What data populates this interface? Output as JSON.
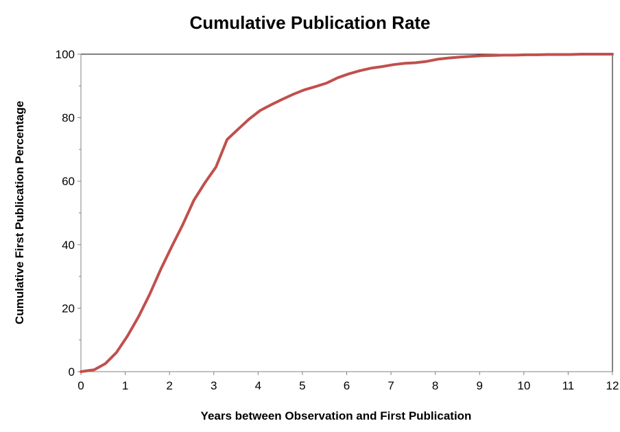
{
  "chart_data": {
    "type": "line",
    "title": "Cumulative Publication Rate",
    "xlabel": "Years between Observation and First Publication",
    "ylabel": "Cumulative First Publication Percentage",
    "xlim": [
      0,
      12
    ],
    "ylim": [
      0,
      100
    ],
    "x_ticks": [
      0,
      1,
      2,
      3,
      4,
      5,
      6,
      7,
      8,
      9,
      10,
      11,
      12
    ],
    "y_ticks": [
      0,
      20,
      40,
      60,
      80,
      100
    ],
    "grid": false,
    "legend": "none",
    "series": [
      {
        "color": "#c0504d",
        "x": [
          0,
          0.3,
          0.55,
          0.8,
          1.05,
          1.3,
          1.55,
          1.8,
          2.05,
          2.3,
          2.55,
          2.8,
          3.05,
          3.3,
          3.55,
          3.8,
          4.05,
          4.3,
          4.55,
          4.8,
          5.05,
          5.3,
          5.55,
          5.8,
          6.05,
          6.3,
          6.55,
          6.8,
          7.05,
          7.3,
          7.55,
          7.8,
          8.05,
          8.3,
          8.55,
          8.8,
          9.05,
          9.3,
          9.55,
          9.8,
          10.05,
          10.3,
          10.55,
          10.8,
          11.05,
          11.3,
          11.55,
          11.8,
          12.05
        ],
        "y": [
          0,
          0.6,
          2.5,
          6,
          11.2,
          17.3,
          24.3,
          32.2,
          39.4,
          46.3,
          54,
          59.5,
          64.5,
          73.1,
          76.4,
          79.6,
          82.3,
          84.1,
          85.8,
          87.4,
          88.8,
          89.8,
          90.9,
          92.6,
          93.8,
          94.8,
          95.6,
          96.1,
          96.7,
          97.1,
          97.3,
          97.7,
          98.4,
          98.8,
          99.1,
          99.3,
          99.5,
          99.6,
          99.7,
          99.7,
          99.8,
          99.8,
          99.9,
          99.9,
          99.9,
          100,
          100,
          100,
          100
        ]
      }
    ]
  }
}
